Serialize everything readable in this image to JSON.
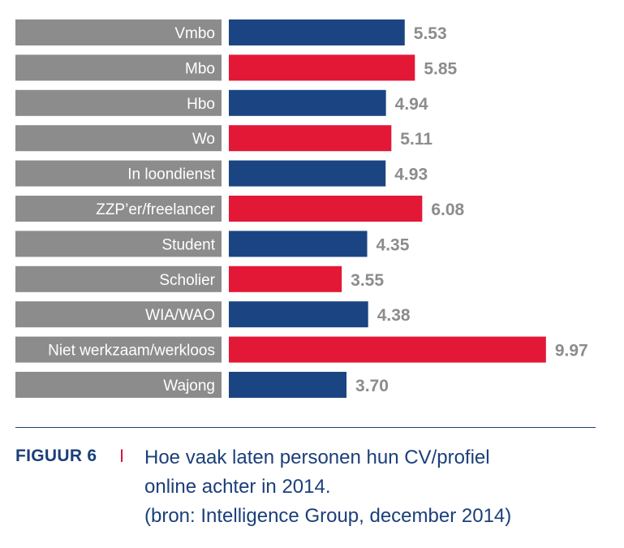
{
  "chart_data": {
    "type": "bar",
    "orientation": "horizontal",
    "categories": [
      "Vmbo",
      "Mbo",
      "Hbo",
      "Wo",
      "In loondienst",
      "ZZP’er/freelancer",
      "Student",
      "Scholier",
      "WIA/WAO",
      "Niet werkzaam/werkloos",
      "Wajong"
    ],
    "values": [
      5.53,
      5.85,
      4.94,
      5.11,
      4.93,
      6.08,
      4.35,
      3.55,
      4.38,
      9.97,
      3.7
    ],
    "value_labels": [
      "5.53",
      "5.85",
      "4.94",
      "5.11",
      "4.93",
      "6.08",
      "4.35",
      "3.55",
      "4.38",
      "9.97",
      "3.70"
    ],
    "bar_colors": [
      "#1b4582",
      "#e31837",
      "#1b4582",
      "#e31837",
      "#1b4582",
      "#e31837",
      "#1b4582",
      "#e31837",
      "#1b4582",
      "#e31837",
      "#1b4582"
    ],
    "label_background": "#8c8c8c",
    "xlim": [
      0,
      10
    ],
    "grid": false,
    "legend": "none"
  },
  "caption": {
    "figure_label": "FIGUUR 6",
    "separator": "I",
    "line1": "Hoe vaak laten personen hun CV/profiel",
    "line2": "online achter in 2014.",
    "line3": "(bron: Intelligence Group, december 2014)"
  },
  "colors": {
    "navy": "#1b3f7a",
    "red": "#d9173a"
  }
}
